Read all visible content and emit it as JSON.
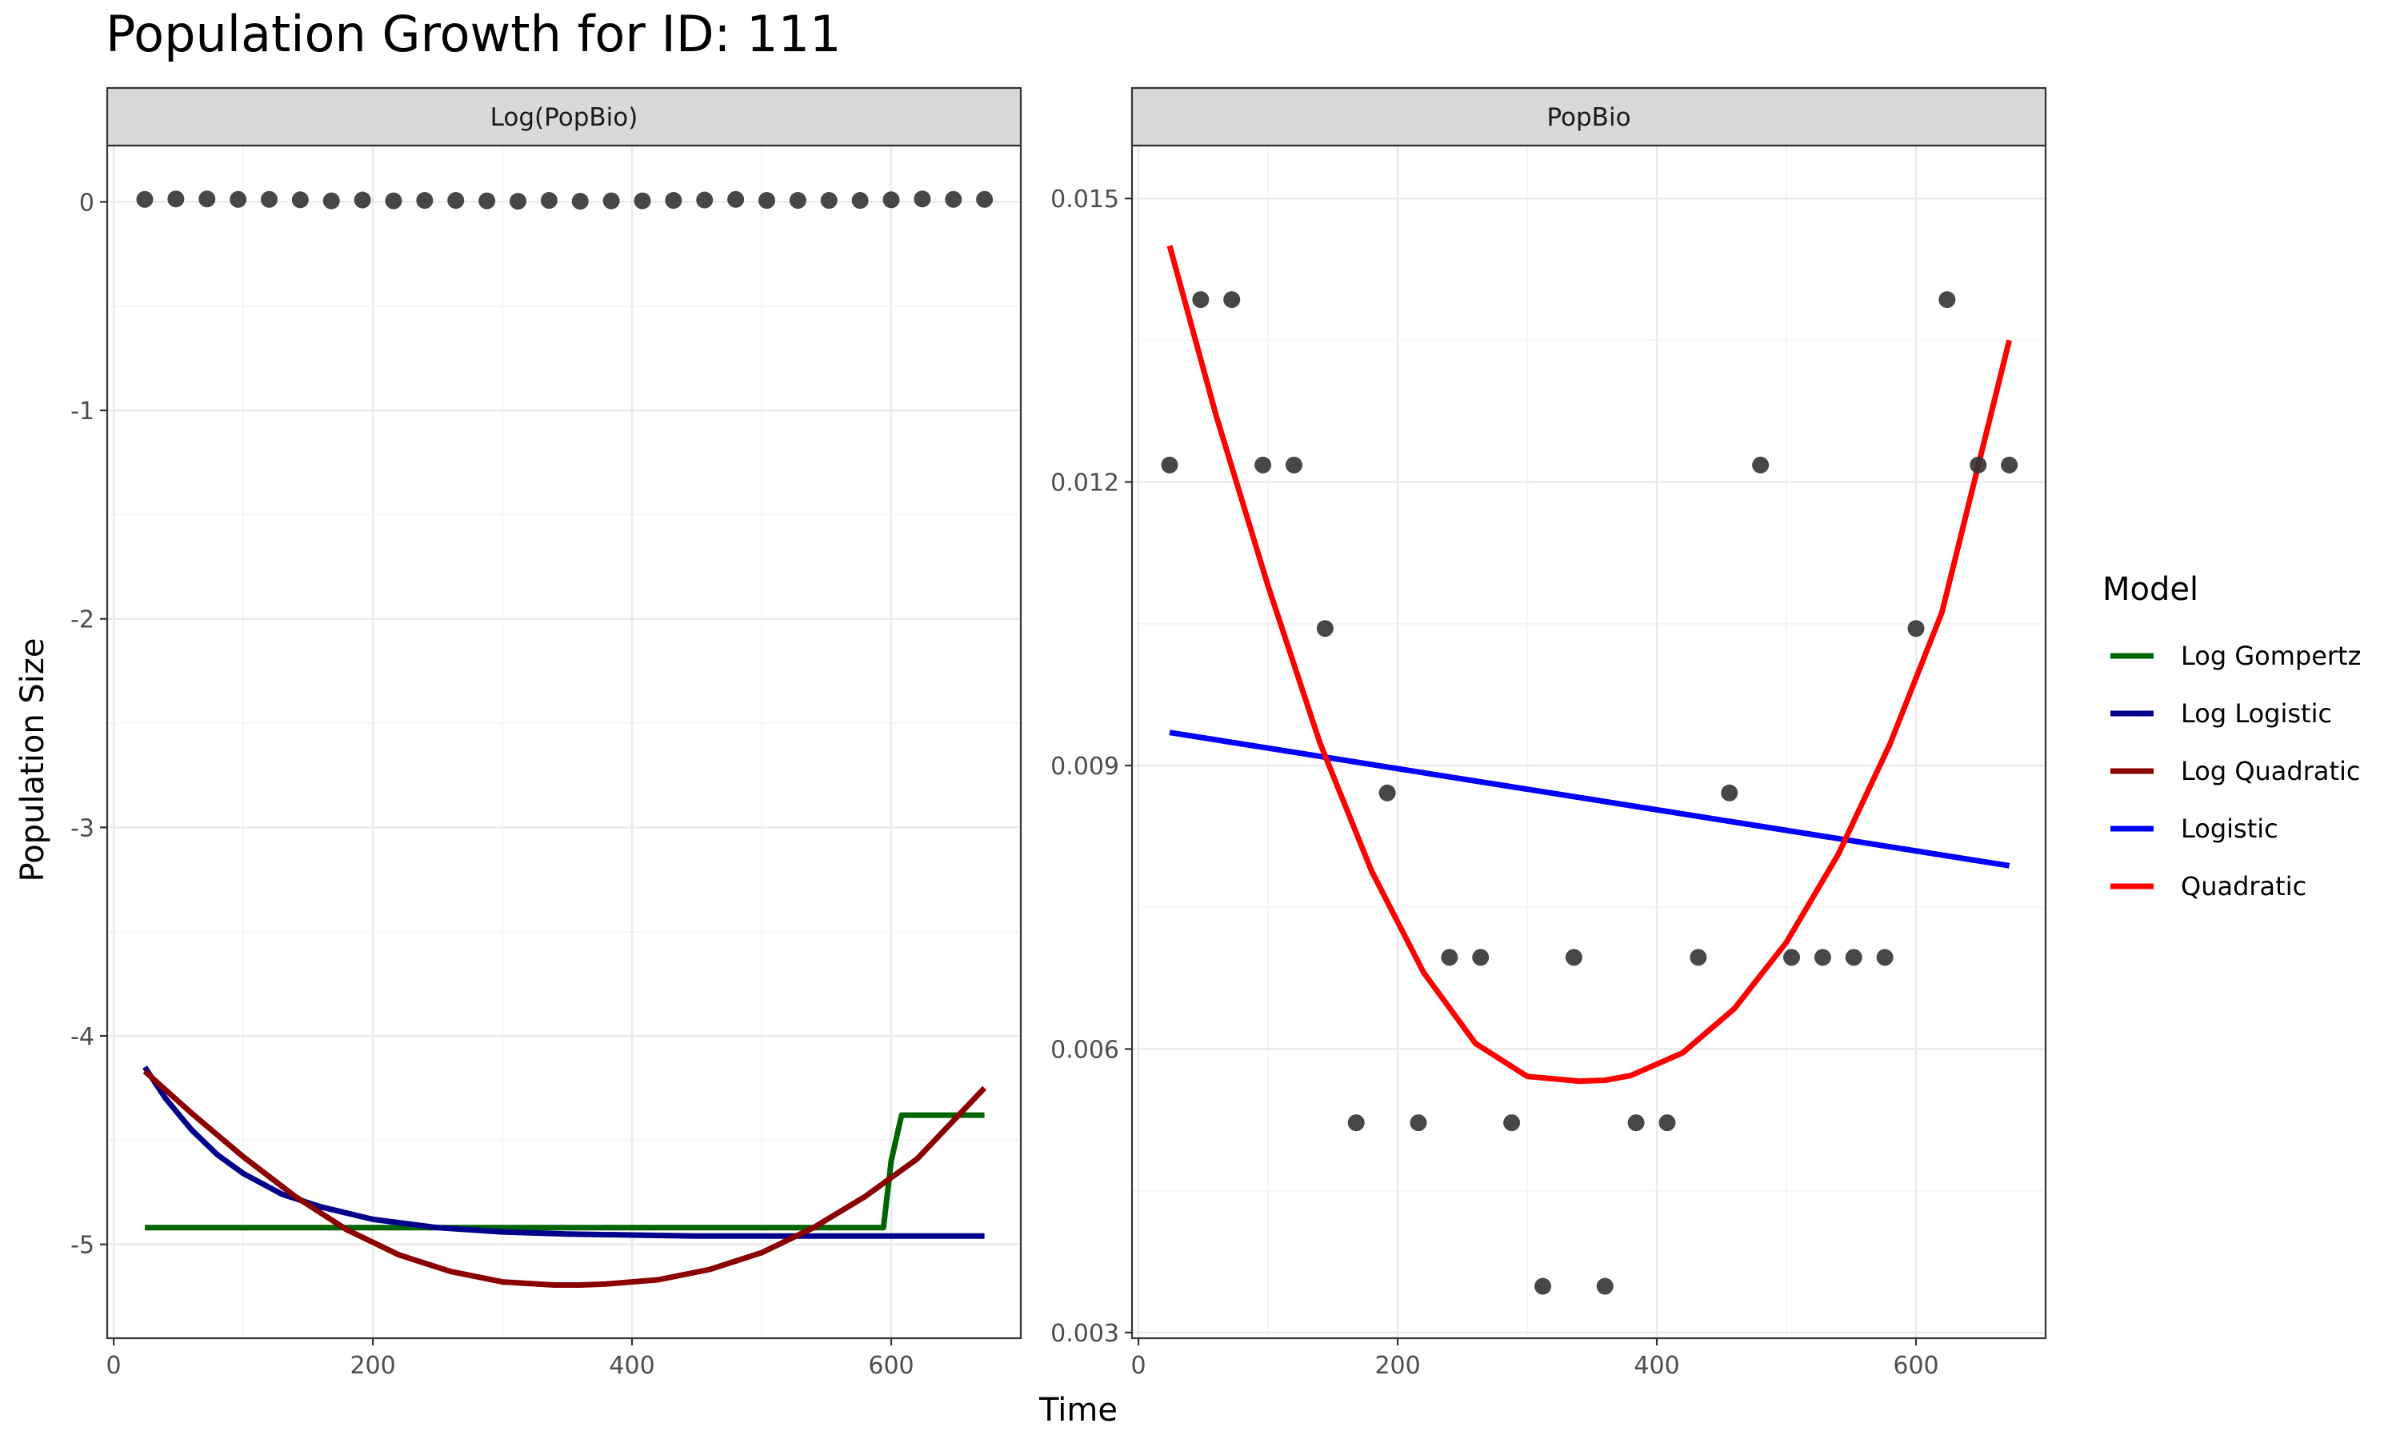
{
  "title": "Population Growth for ID: 111",
  "chart_data": [
    {
      "panel": "Log(PopBio)",
      "type": "scatter",
      "ylabel": "Population Size",
      "xlabel": "Time",
      "xlim": [
        -5,
        700
      ],
      "ylim": [
        -5.45,
        0.27
      ],
      "x_ticks": [
        0,
        200,
        400,
        600
      ],
      "y_ticks": [
        0,
        -1,
        -2,
        -3,
        -4,
        -5
      ],
      "grid": true,
      "points": {
        "x": [
          24,
          48,
          72,
          96,
          120,
          144,
          168,
          192,
          216,
          240,
          264,
          288,
          312,
          336,
          360,
          384,
          408,
          432,
          456,
          480,
          504,
          528,
          552,
          576,
          600,
          624,
          648,
          672
        ],
        "y": [
          0.012,
          0.014,
          0.014,
          0.012,
          0.012,
          0.01,
          0.005,
          0.009,
          0.005,
          0.007,
          0.007,
          0.005,
          0.003,
          0.007,
          0.003,
          0.005,
          0.005,
          0.007,
          0.009,
          0.012,
          0.007,
          0.007,
          0.007,
          0.007,
          0.01,
          0.014,
          0.012,
          0.012
        ]
      },
      "series": [
        {
          "name": "Log Gompertz",
          "color": "#006400",
          "x": [
            24,
            100,
            200,
            300,
            400,
            500,
            594,
            600,
            608,
            672
          ],
          "y": [
            -4.92,
            -4.92,
            -4.92,
            -4.92,
            -4.92,
            -4.92,
            -4.92,
            -4.6,
            -4.38,
            -4.38
          ]
        },
        {
          "name": "Log Logistic",
          "color": "#00008B",
          "x": [
            24,
            40,
            60,
            80,
            100,
            130,
            160,
            200,
            250,
            300,
            350,
            400,
            450,
            500,
            550,
            600,
            672
          ],
          "y": [
            -4.15,
            -4.3,
            -4.45,
            -4.57,
            -4.66,
            -4.76,
            -4.82,
            -4.88,
            -4.92,
            -4.94,
            -4.95,
            -4.955,
            -4.96,
            -4.96,
            -4.96,
            -4.96,
            -4.96
          ]
        },
        {
          "name": "Log Quadratic",
          "color": "#8B0000",
          "x": [
            24,
            60,
            100,
            140,
            180,
            220,
            260,
            300,
            340,
            360,
            380,
            420,
            460,
            500,
            540,
            580,
            620,
            672
          ],
          "y": [
            -4.17,
            -4.37,
            -4.58,
            -4.77,
            -4.93,
            -5.05,
            -5.13,
            -5.18,
            -5.195,
            -5.195,
            -5.19,
            -5.17,
            -5.12,
            -5.04,
            -4.92,
            -4.77,
            -4.59,
            -4.25
          ]
        }
      ]
    },
    {
      "panel": "PopBio",
      "type": "scatter",
      "xlabel": "Time",
      "xlim": [
        -5,
        700
      ],
      "ylim": [
        0.00294,
        0.01556
      ],
      "x_ticks": [
        0,
        200,
        400,
        600
      ],
      "y_ticks": [
        "0.003",
        "0.006",
        "0.009",
        "0.012",
        "0.015"
      ],
      "grid": true,
      "points": {
        "x": [
          24,
          48,
          72,
          96,
          120,
          144,
          168,
          192,
          216,
          240,
          264,
          288,
          312,
          336,
          360,
          384,
          408,
          432,
          456,
          480,
          504,
          528,
          552,
          576,
          600,
          624,
          648,
          672
        ],
        "y": [
          0.01218,
          0.01393,
          0.01393,
          0.01218,
          0.01218,
          0.01045,
          0.00522,
          0.00871,
          0.00522,
          0.00697,
          0.00697,
          0.00522,
          0.00349,
          0.00697,
          0.00349,
          0.00522,
          0.00522,
          0.00697,
          0.00871,
          0.01218,
          0.00697,
          0.00697,
          0.00697,
          0.00697,
          0.01045,
          0.01393,
          0.01218,
          0.01218
        ]
      },
      "series": [
        {
          "name": "Logistic",
          "color": "#0000FF",
          "x": [
            24,
            672
          ],
          "y": [
            0.00935,
            0.00794
          ]
        },
        {
          "name": "Quadratic",
          "color": "#FF0000",
          "x": [
            24,
            60,
            100,
            140,
            180,
            220,
            260,
            300,
            340,
            360,
            380,
            420,
            460,
            500,
            540,
            580,
            620,
            672
          ],
          "y": [
            0.0145,
            0.0127,
            0.0109,
            0.00924,
            0.00788,
            0.00681,
            0.00606,
            0.00571,
            0.00566,
            0.00567,
            0.00572,
            0.00596,
            0.00643,
            0.00713,
            0.00806,
            0.00923,
            0.01062,
            0.0135
          ]
        }
      ]
    }
  ],
  "legend": {
    "title": "Model",
    "placement": "right",
    "items": [
      {
        "label": "Log Gompertz",
        "color": "#006400"
      },
      {
        "label": "Log Logistic",
        "color": "#00008B"
      },
      {
        "label": "Log Quadratic",
        "color": "#8B0000"
      },
      {
        "label": "Logistic",
        "color": "#0000FF"
      },
      {
        "label": "Quadratic",
        "color": "#FF0000"
      }
    ]
  },
  "colors": {
    "panel_strip": "#D9D9D9",
    "grid_major": "#EBEBEB",
    "grid_minor": "#F5F5F5",
    "point": "#333333"
  }
}
